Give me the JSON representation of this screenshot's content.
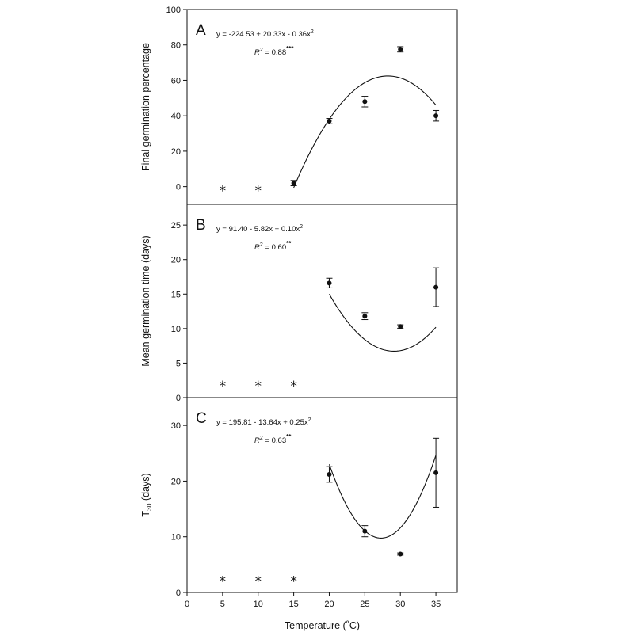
{
  "chart_data": {
    "type": "scatter",
    "xlabel": "Temperature (˚C)",
    "x_ticks": [
      "0",
      "5",
      "10",
      "15",
      "20",
      "25",
      "30",
      "35"
    ],
    "xlim": [
      0,
      38
    ],
    "grid": false,
    "panels": [
      {
        "letter": "A",
        "ylabel": "Final germination percentage",
        "ylim": [
          -10,
          100
        ],
        "y_ticks": [
          0,
          20,
          40,
          60,
          80,
          100
        ],
        "equation": "y = -224.53 + 20.33x - 0.36x",
        "equation_sup": "2",
        "r2_label": "R",
        "r2_value": " = 0.88",
        "significance": "***",
        "fit": {
          "a": -224.53,
          "b": 20.33,
          "c": -0.36,
          "x_range": [
            15,
            35
          ]
        },
        "asterisk_x": [
          5,
          10
        ],
        "asterisk_y": 0,
        "points": [
          {
            "x": 15,
            "y": 2,
            "err": 1.5
          },
          {
            "x": 20,
            "y": 37,
            "err": 1.5
          },
          {
            "x": 25,
            "y": 48,
            "err": 3
          },
          {
            "x": 30,
            "y": 77.5,
            "err": 1.5
          },
          {
            "x": 35,
            "y": 40,
            "err": 3
          }
        ]
      },
      {
        "letter": "B",
        "ylabel": "Mean germination time (days)",
        "ylim": [
          0,
          28
        ],
        "y_ticks": [
          0,
          5,
          10,
          15,
          20,
          25
        ],
        "equation": "y = 91.40 - 5.82x + 0.10x",
        "equation_sup": "2",
        "r2_label": "R",
        "r2_value": " = 0.60",
        "significance": "**",
        "fit": {
          "a": 91.4,
          "b": -5.82,
          "c": 0.1,
          "x_range": [
            20,
            35
          ]
        },
        "asterisk_x": [
          5,
          10,
          15
        ],
        "asterisk_y": 2.3,
        "points": [
          {
            "x": 20,
            "y": 16.6,
            "err": 0.7
          },
          {
            "x": 25,
            "y": 11.8,
            "err": 0.5
          },
          {
            "x": 30,
            "y": 10.3,
            "err": 0.25
          },
          {
            "x": 35,
            "y": 16.0,
            "err": 2.8
          }
        ]
      },
      {
        "letter": "C",
        "ylabel": "T",
        "ylabel_sub": "30",
        "ylabel_suffix": " (days)",
        "ylim": [
          0,
          35
        ],
        "y_ticks": [
          0,
          10,
          20,
          30
        ],
        "equation": "y = 195.81 - 13.64x + 0.25x",
        "equation_sup": "2",
        "r2_label": "R",
        "r2_value": " = 0.63",
        "significance": "**",
        "fit": {
          "a": 195.81,
          "b": -13.64,
          "c": 0.25,
          "x_range": [
            20,
            35
          ]
        },
        "asterisk_x": [
          5,
          10,
          15
        ],
        "asterisk_y": 2.8,
        "points": [
          {
            "x": 20,
            "y": 21.2,
            "err": 1.4
          },
          {
            "x": 25,
            "y": 11.0,
            "err": 1.0
          },
          {
            "x": 30,
            "y": 6.9,
            "err": 0.2
          },
          {
            "x": 35,
            "y": 21.5,
            "err": 6.2
          }
        ]
      }
    ]
  }
}
